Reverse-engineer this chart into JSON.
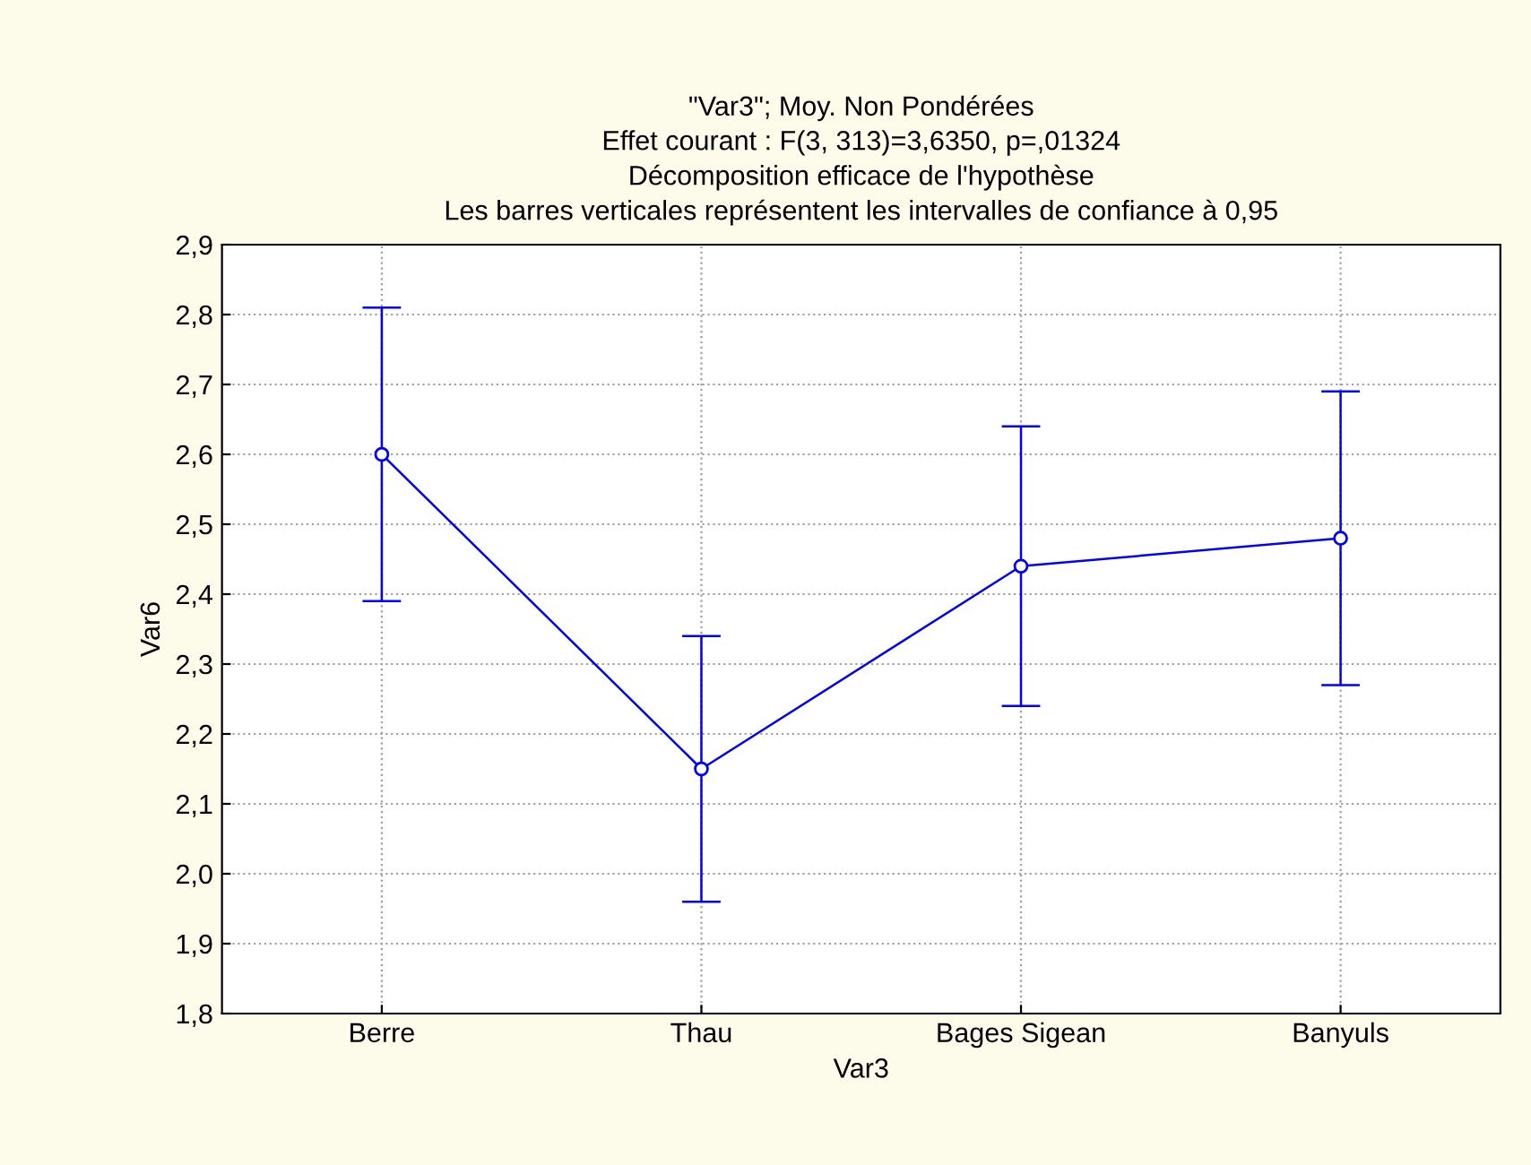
{
  "chart_data": {
    "type": "line",
    "title": "\"Var3\"; Moy. Non Pondérées\nEffet courant : F(3, 313)=3,6350, p=,01324\nDécomposition efficace de l'hypothèse\nLes barres verticales représentent les intervalles de confiance à 0,95",
    "xlabel": "Var3",
    "ylabel": "Var6",
    "categories": [
      "Berre",
      "Thau",
      "Bages Sigean",
      "Banyuls"
    ],
    "series": [
      {
        "color": "#0000ff",
        "values": [
          2.6,
          2.15,
          2.44,
          2.48
        ],
        "errors": [
          [
            2.39,
            2.81
          ],
          [
            1.96,
            2.34
          ],
          [
            2.24,
            2.64
          ],
          [
            2.27,
            2.69
          ]
        ]
      }
    ],
    "ylim": [
      1.8,
      2.9
    ],
    "yticks": [
      {
        "value": 1.8,
        "label": "1,8"
      },
      {
        "value": 1.9,
        "label": "1,9"
      },
      {
        "value": 2.0,
        "label": "2,0"
      },
      {
        "value": 2.1,
        "label": "2,1"
      },
      {
        "value": 2.2,
        "label": "2,2"
      },
      {
        "value": 2.3,
        "label": "2,3"
      },
      {
        "value": 2.4,
        "label": "2,4"
      },
      {
        "value": 2.5,
        "label": "2,5"
      },
      {
        "value": 2.6,
        "label": "2,6"
      },
      {
        "value": 2.7,
        "label": "2,7"
      },
      {
        "value": 2.8,
        "label": "2,8"
      },
      {
        "value": 2.9,
        "label": "2,9"
      }
    ],
    "grid": true,
    "marker": "circle",
    "line_style": "solid",
    "legend": false
  }
}
